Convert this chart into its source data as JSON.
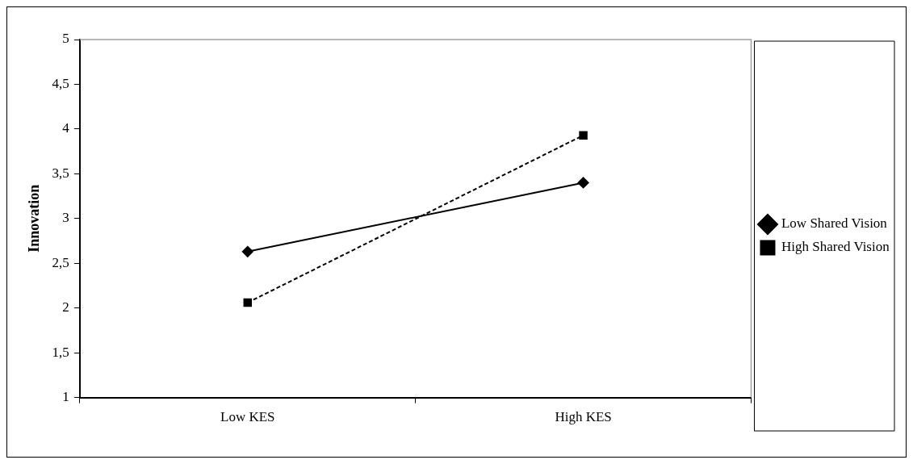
{
  "chart_data": {
    "type": "line",
    "ylabel": "Innovation",
    "categories": [
      "Low KES",
      "High KES"
    ],
    "series": [
      {
        "name": "Low Shared Vision",
        "color": "#000000",
        "values": [
          2.63,
          3.4
        ],
        "marker": "diamond",
        "line_style": "solid"
      },
      {
        "name": "High Shared Vision",
        "color": "#000000",
        "values": [
          2.06,
          3.93
        ],
        "marker": "square",
        "line_style": "dashed"
      }
    ],
    "ylim": [
      1,
      5
    ],
    "yticks": [
      {
        "value": 1,
        "label": "1"
      },
      {
        "value": 1.5,
        "label": "1,5"
      },
      {
        "value": 2,
        "label": "2"
      },
      {
        "value": 2.5,
        "label": "2,5"
      },
      {
        "value": 3,
        "label": "3"
      },
      {
        "value": 3.5,
        "label": "3,5"
      },
      {
        "value": 4,
        "label": "4"
      },
      {
        "value": 4.5,
        "label": "4,5"
      },
      {
        "value": 5,
        "label": "5"
      }
    ],
    "grid": false,
    "legend": "right"
  }
}
